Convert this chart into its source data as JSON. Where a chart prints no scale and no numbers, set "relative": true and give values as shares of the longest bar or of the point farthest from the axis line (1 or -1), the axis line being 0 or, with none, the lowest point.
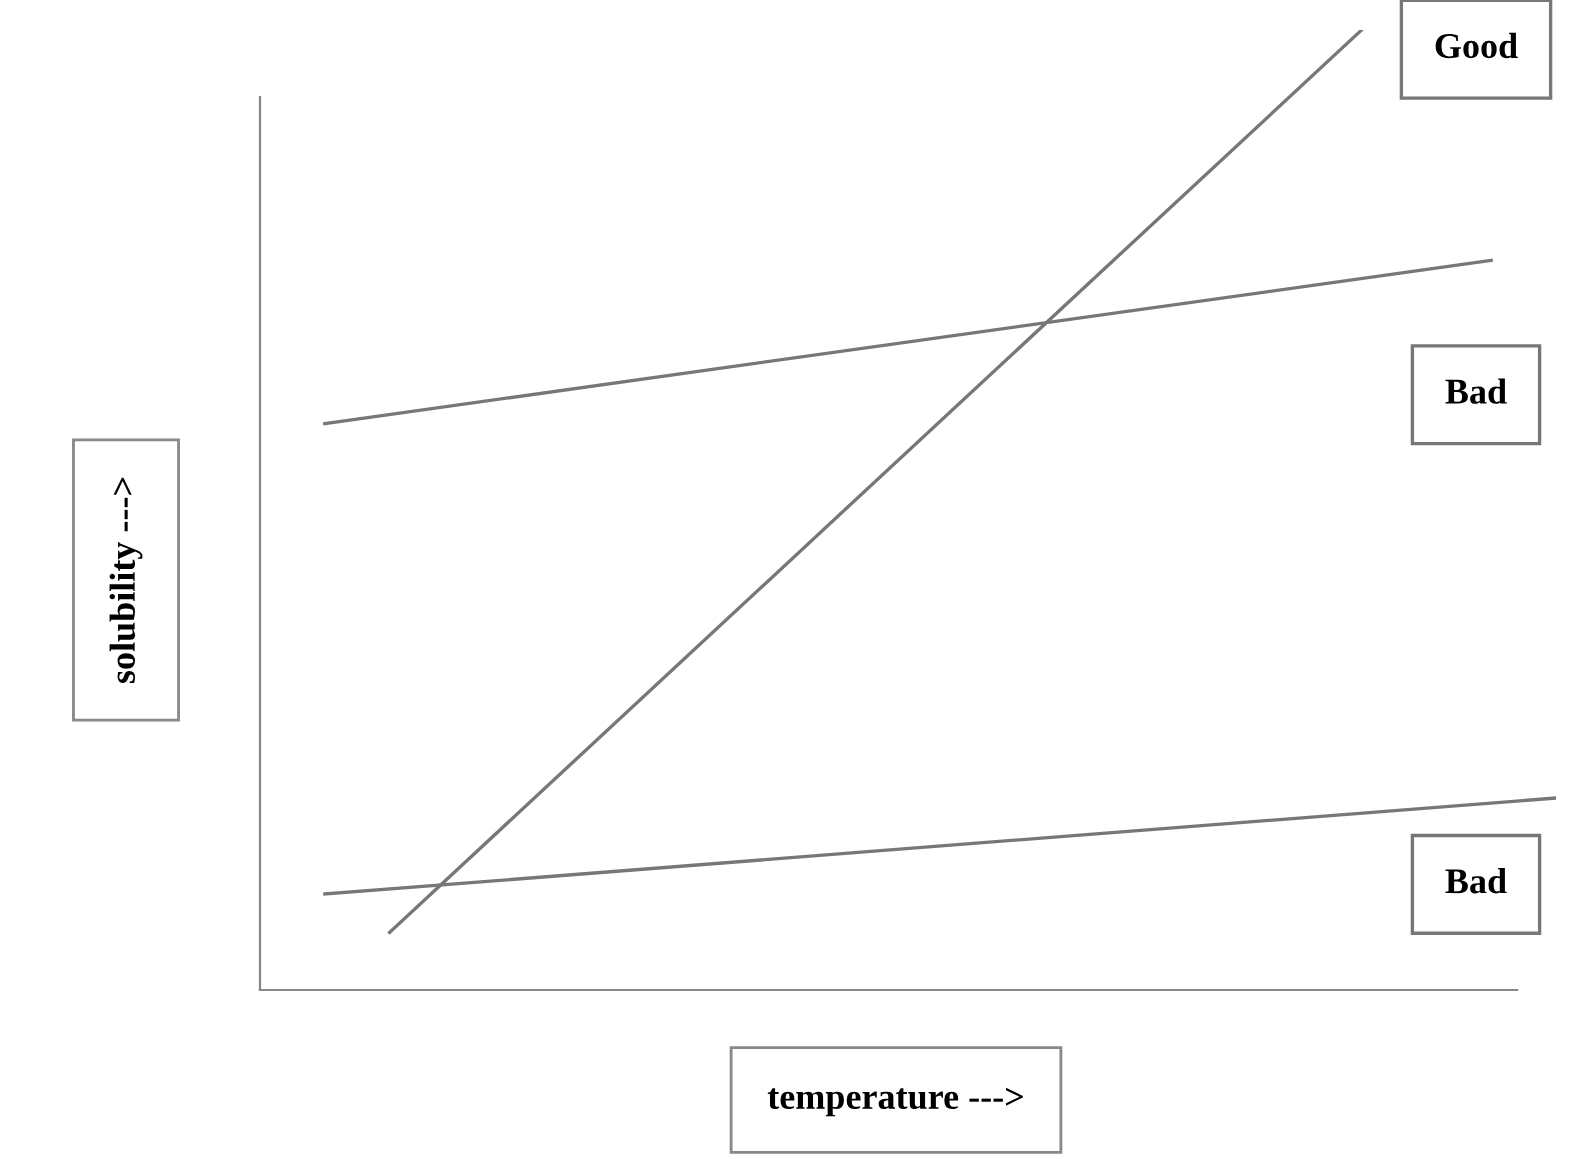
{
  "chart_data": {
    "type": "line",
    "relative": true,
    "xlabel": "temperature --->",
    "ylabel": "solubility --->",
    "legend": false,
    "marker": "none",
    "line_style": "solid",
    "categories": [
      null,
      null,
      null,
      null,
      null,
      null,
      null,
      null,
      null,
      null,
      null,
      null,
      null,
      null,
      null,
      null,
      null,
      null,
      null,
      null,
      null
    ],
    "series": [
      {
        "name": "Good",
        "color": "#777777",
        "values": [
          null,
          null,
          0.06,
          null,
          null,
          null,
          null,
          null,
          null,
          null,
          null,
          null,
          null,
          null,
          null,
          null,
          null,
          1,
          null,
          null,
          null
        ]
      },
      {
        "name": "Bad",
        "color": "#777777",
        "values": [
          null,
          0.59,
          null,
          null,
          null,
          null,
          null,
          null,
          null,
          null,
          null,
          null,
          null,
          null,
          null,
          null,
          null,
          null,
          null,
          0.76,
          null
        ]
      },
      {
        "name": "Bad",
        "color": "#777777",
        "values": [
          null,
          0.1,
          null,
          null,
          null,
          null,
          null,
          null,
          null,
          null,
          null,
          null,
          null,
          null,
          null,
          null,
          null,
          null,
          null,
          null,
          0.2
        ]
      }
    ]
  }
}
